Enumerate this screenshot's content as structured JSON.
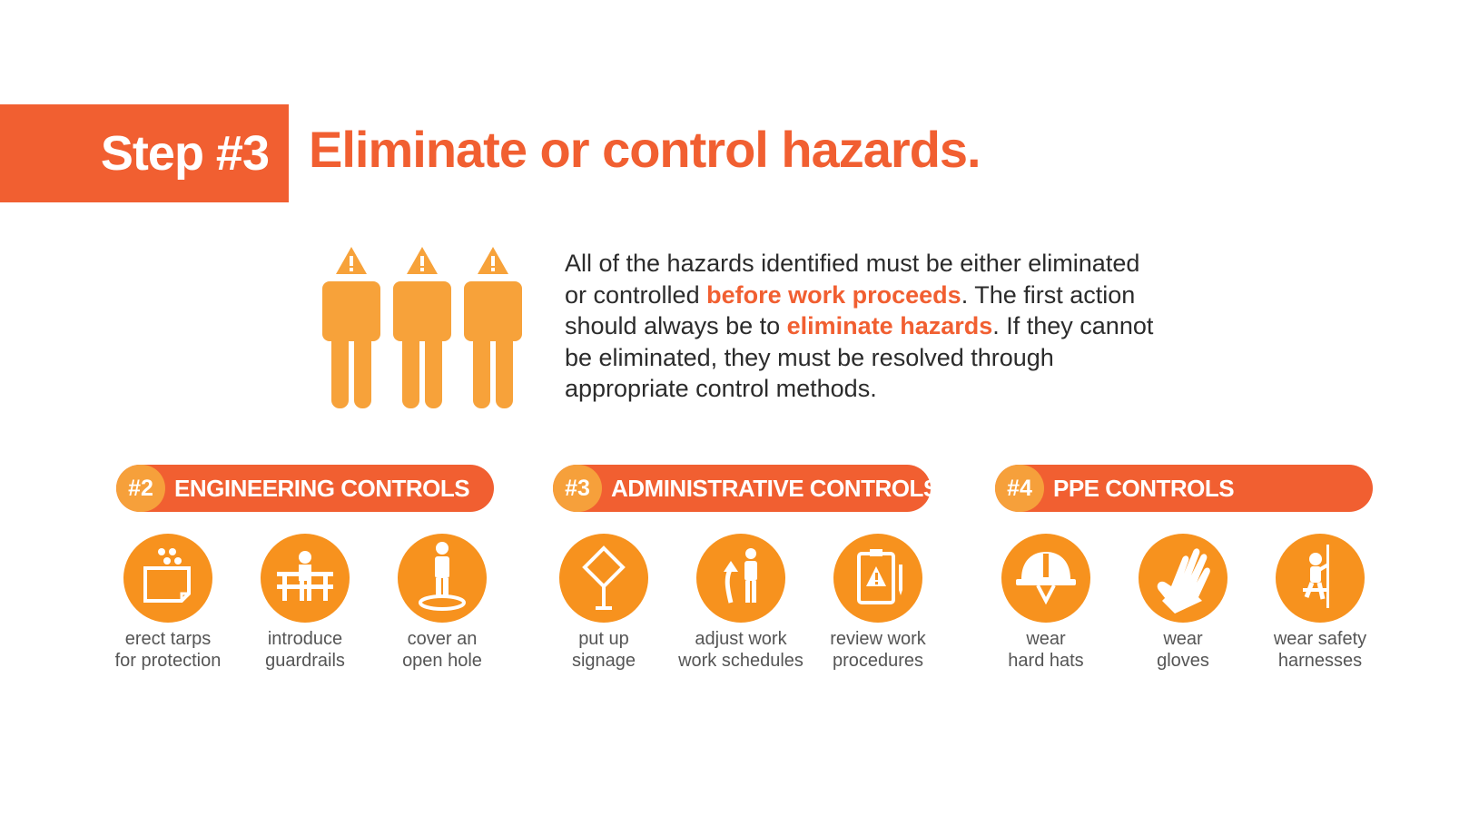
{
  "step": {
    "label": "Step #3",
    "title": "Eliminate or control hazards."
  },
  "intro": {
    "t1": "All of the hazards identified must be either eliminated or controlled ",
    "h1": "before work proceeds",
    "t2": ". The first action should always be to ",
    "h2": "eliminate hazards",
    "t3": ". If they cannot be eliminated, they must be resolved through appropriate control methods."
  },
  "colors": {
    "accent": "#f15f31",
    "badge": "#f6a03b",
    "icon": "#f7921e",
    "figure": "#f7a23a"
  },
  "categories": [
    {
      "num": "#2",
      "title": "ENGINEERING CONTROLS",
      "items": [
        {
          "icon": "tarp-icon",
          "line1": "erect tarps",
          "line2": "for protection"
        },
        {
          "icon": "guardrail-icon",
          "line1": "introduce",
          "line2": "guardrails"
        },
        {
          "icon": "hole-cover-icon",
          "line1": "cover an",
          "line2": "open hole"
        }
      ]
    },
    {
      "num": "#3",
      "title": "ADMINISTRATIVE CONTROLS",
      "items": [
        {
          "icon": "signage-icon",
          "line1": "put up",
          "line2": "signage"
        },
        {
          "icon": "schedule-icon",
          "line1": "adjust work",
          "line2": "work schedules"
        },
        {
          "icon": "procedures-icon",
          "line1": "review work",
          "line2": "procedures"
        }
      ]
    },
    {
      "num": "#4",
      "title": "PPE CONTROLS",
      "items": [
        {
          "icon": "hard-hat-icon",
          "line1": "wear",
          "line2": "hard hats"
        },
        {
          "icon": "gloves-icon",
          "line1": "wear",
          "line2": "gloves"
        },
        {
          "icon": "harness-icon",
          "line1": "wear safety",
          "line2": "harnesses"
        }
      ]
    }
  ]
}
